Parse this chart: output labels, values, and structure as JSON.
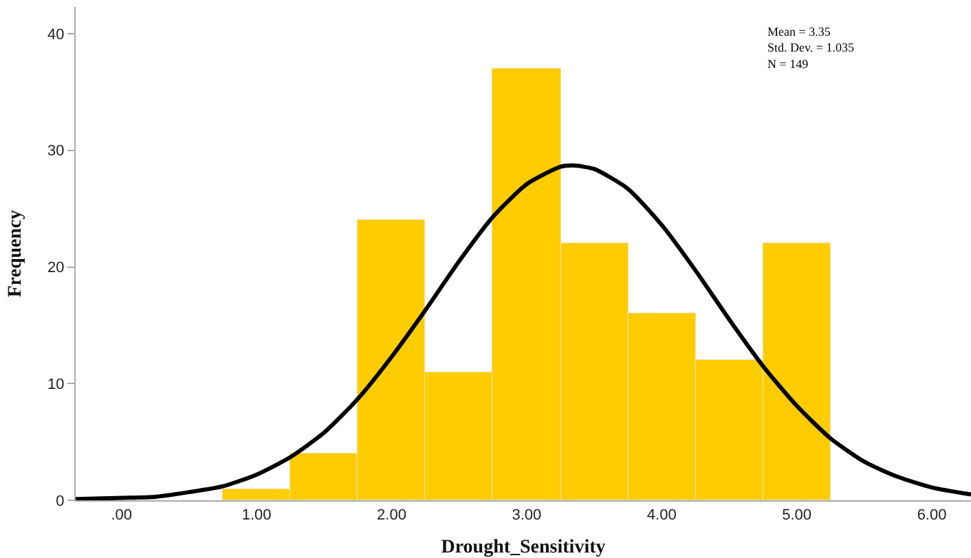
{
  "chart_data": {
    "type": "histogram",
    "xlabel": "Drought_Sensitivity",
    "ylabel": "Frequency",
    "bins": [
      0.75,
      1.25,
      1.75,
      2.25,
      2.75,
      3.25,
      3.75,
      4.25,
      4.75,
      5.25
    ],
    "values": [
      1,
      4,
      24,
      11,
      37,
      22,
      16,
      12,
      22
    ],
    "color": "#ffcc00",
    "series": [
      {
        "type": "line",
        "color": "#000000",
        "x": [
          -0.34,
          0,
          0.25,
          0.5,
          0.75,
          1,
          1.25,
          1.5,
          1.75,
          2,
          2.25,
          2.5,
          2.75,
          3,
          3.25,
          3.35,
          3.5,
          3.75,
          4,
          4.25,
          4.5,
          4.75,
          5,
          5.25,
          5.5,
          5.75,
          6,
          6.29
        ],
        "values": [
          0.1,
          0.2,
          0.3,
          0.7,
          1.2,
          2.2,
          3.7,
          5.8,
          8.7,
          12.3,
          16.3,
          20.5,
          24.3,
          27.1,
          28.6,
          28.7,
          28.4,
          26.7,
          23.6,
          19.7,
          15.5,
          11.5,
          8.1,
          5.3,
          3.3,
          2.0,
          1.1,
          0.5
        ]
      }
    ],
    "xlim": [
      -0.34,
      6.29
    ],
    "xticks": [
      {
        "value": 0,
        "label": ".00"
      },
      {
        "value": 1,
        "label": "1.00"
      },
      {
        "value": 2,
        "label": "2.00"
      },
      {
        "value": 3,
        "label": "3.00"
      },
      {
        "value": 4,
        "label": "4.00"
      },
      {
        "value": 5,
        "label": "5.00"
      },
      {
        "value": 6,
        "label": "6.00"
      }
    ],
    "ylim": [
      0,
      42.3
    ],
    "yticks": [
      0,
      10,
      20,
      30,
      40
    ],
    "annotations": [
      "Mean = 3.35",
      "Std. Dev. = 1.035",
      "N = 149"
    ]
  }
}
